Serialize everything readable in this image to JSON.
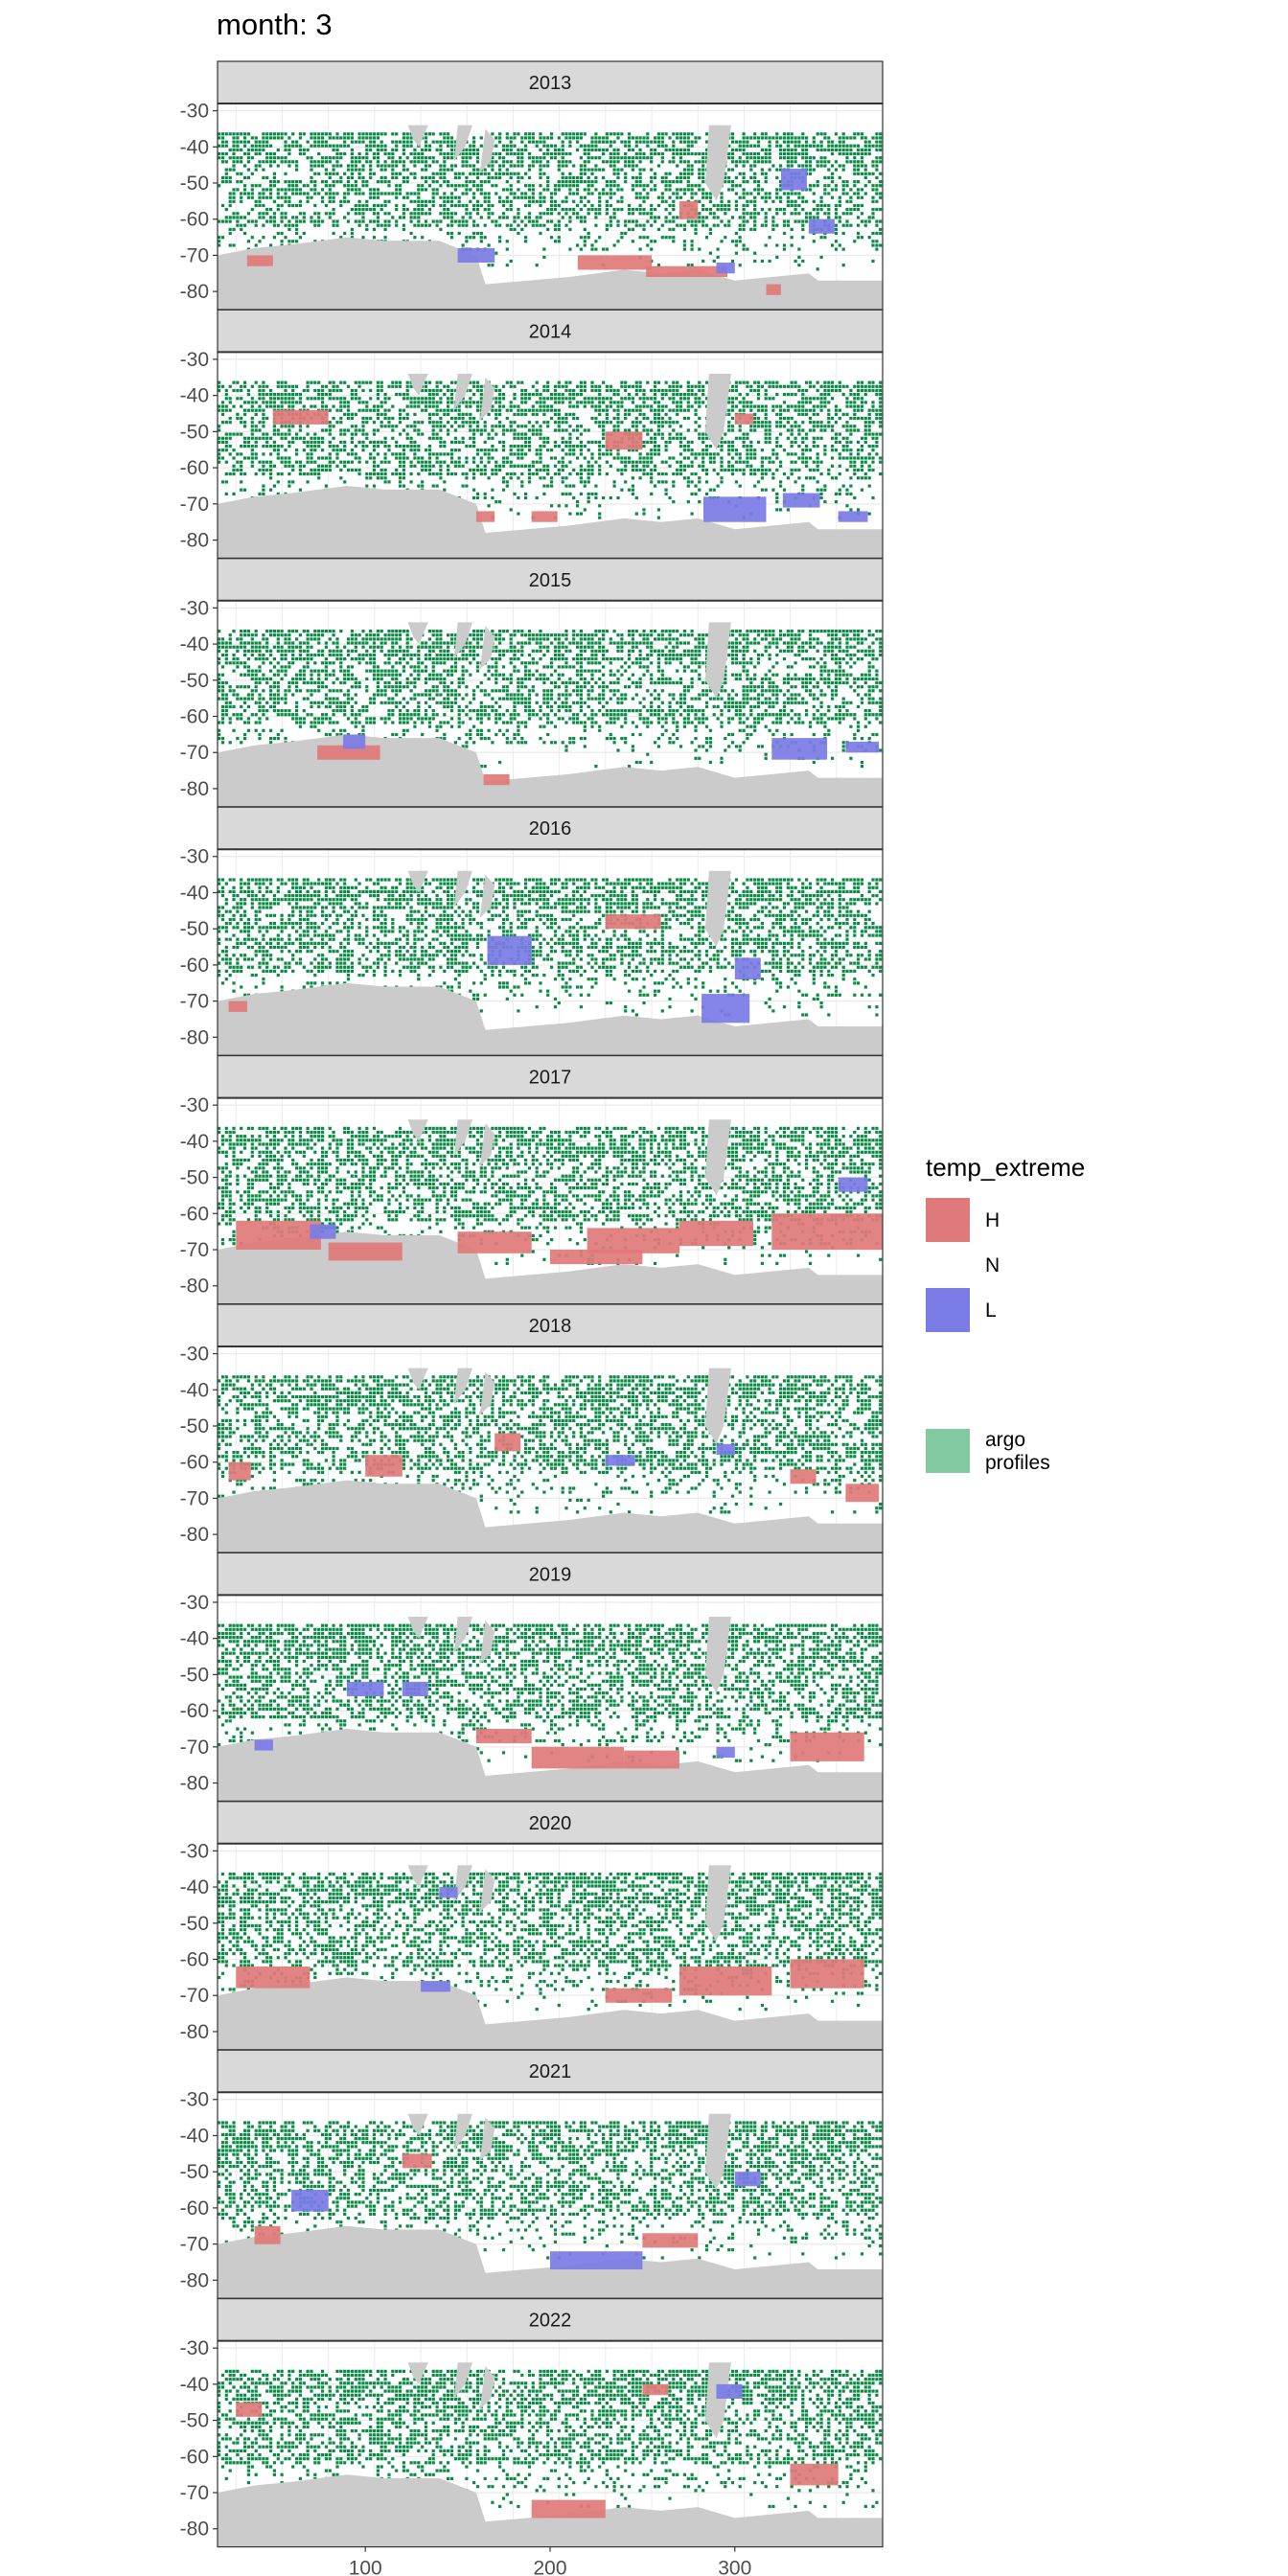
{
  "title": "month: 3",
  "colors": {
    "high": "#e07a7a",
    "low": "#7b7be6",
    "argo": "#0b8a45",
    "argo_legend": "#82c8a0",
    "land": "#cbcbcb",
    "strip": "#d9d9d9",
    "grid": "#ebebeb"
  },
  "legend": {
    "title": "temp_extreme",
    "items": [
      {
        "label": "H",
        "color": "#e07a7a"
      },
      {
        "label": "N",
        "color": "none"
      },
      {
        "label": "L",
        "color": "#7b7be6"
      },
      {
        "label": "argo\nprofiles",
        "color": "#82c8a0"
      }
    ]
  },
  "chart_data": {
    "type": "heatmap",
    "facets": [
      "2013",
      "2014",
      "2015",
      "2016",
      "2017",
      "2018",
      "2019",
      "2020",
      "2021",
      "2022"
    ],
    "x_ticks": [
      100,
      200,
      300
    ],
    "y_ticks": [
      -30,
      -40,
      -50,
      -60,
      -70,
      -80
    ],
    "xlim": [
      20,
      380
    ],
    "ylim": [
      -85,
      -28
    ],
    "grid": true,
    "legend_position": "right",
    "panels": [
      {
        "year": "2013",
        "high": [
          [
            270,
            -55,
            10,
            5
          ],
          [
            36,
            -70,
            14,
            3
          ],
          [
            215,
            -70,
            40,
            4
          ],
          [
            252,
            -73,
            44,
            3
          ],
          [
            317,
            -78,
            8,
            3
          ]
        ],
        "low": [
          [
            150,
            -68,
            20,
            4
          ],
          [
            290,
            -72,
            10,
            3
          ],
          [
            325,
            -46,
            14,
            6
          ],
          [
            340,
            -60,
            14,
            4
          ]
        ]
      },
      {
        "year": "2014",
        "high": [
          [
            50,
            -44,
            30,
            4
          ],
          [
            230,
            -50,
            20,
            5
          ],
          [
            300,
            -45,
            10,
            3
          ],
          [
            160,
            -72,
            10,
            3
          ],
          [
            190,
            -72,
            14,
            3
          ]
        ],
        "low": [
          [
            283,
            -68,
            34,
            7
          ],
          [
            326,
            -67,
            20,
            4
          ],
          [
            356,
            -72,
            16,
            3
          ]
        ]
      },
      {
        "year": "2015",
        "high": [
          [
            74,
            -68,
            34,
            4
          ],
          [
            164,
            -76,
            14,
            3
          ]
        ],
        "low": [
          [
            88,
            -65,
            12,
            4
          ],
          [
            320,
            -66,
            30,
            6
          ],
          [
            360,
            -67,
            18,
            3
          ]
        ]
      },
      {
        "year": "2016",
        "high": [
          [
            230,
            -46,
            30,
            4
          ],
          [
            26,
            -70,
            10,
            3
          ]
        ],
        "low": [
          [
            166,
            -52,
            24,
            8
          ],
          [
            282,
            -68,
            26,
            8
          ],
          [
            300,
            -58,
            14,
            6
          ]
        ]
      },
      {
        "year": "2017",
        "high": [
          [
            30,
            -62,
            46,
            8
          ],
          [
            80,
            -68,
            40,
            5
          ],
          [
            150,
            -65,
            40,
            6
          ],
          [
            220,
            -64,
            50,
            7
          ],
          [
            270,
            -62,
            40,
            7
          ],
          [
            320,
            -60,
            60,
            10
          ],
          [
            200,
            -70,
            50,
            4
          ]
        ],
        "low": [
          [
            70,
            -63,
            14,
            4
          ],
          [
            356,
            -50,
            16,
            4
          ]
        ]
      },
      {
        "year": "2018",
        "high": [
          [
            100,
            -58,
            20,
            6
          ],
          [
            170,
            -52,
            14,
            5
          ],
          [
            360,
            -66,
            18,
            5
          ],
          [
            26,
            -60,
            12,
            5
          ],
          [
            330,
            -62,
            14,
            4
          ]
        ],
        "low": [
          [
            230,
            -58,
            16,
            3
          ],
          [
            290,
            -55,
            10,
            3
          ]
        ]
      },
      {
        "year": "2019",
        "high": [
          [
            160,
            -65,
            30,
            4
          ],
          [
            190,
            -70,
            50,
            6
          ],
          [
            240,
            -71,
            30,
            5
          ],
          [
            330,
            -66,
            40,
            8
          ]
        ],
        "low": [
          [
            90,
            -52,
            20,
            4
          ],
          [
            120,
            -52,
            14,
            4
          ],
          [
            40,
            -68,
            10,
            3
          ],
          [
            290,
            -70,
            10,
            3
          ]
        ]
      },
      {
        "year": "2020",
        "high": [
          [
            30,
            -62,
            40,
            6
          ],
          [
            270,
            -62,
            50,
            8
          ],
          [
            330,
            -60,
            40,
            8
          ],
          [
            230,
            -68,
            36,
            4
          ]
        ],
        "low": [
          [
            130,
            -66,
            16,
            3
          ],
          [
            140,
            -40,
            10,
            3
          ]
        ]
      },
      {
        "year": "2021",
        "high": [
          [
            40,
            -65,
            14,
            5
          ],
          [
            120,
            -45,
            16,
            4
          ],
          [
            250,
            -67,
            30,
            4
          ]
        ],
        "low": [
          [
            200,
            -72,
            50,
            5
          ],
          [
            60,
            -55,
            20,
            6
          ],
          [
            300,
            -50,
            14,
            4
          ]
        ]
      },
      {
        "year": "2022",
        "high": [
          [
            190,
            -72,
            40,
            5
          ],
          [
            330,
            -62,
            26,
            6
          ],
          [
            30,
            -45,
            14,
            4
          ],
          [
            250,
            -40,
            14,
            3
          ]
        ],
        "low": [
          [
            290,
            -40,
            14,
            4
          ]
        ]
      }
    ]
  }
}
